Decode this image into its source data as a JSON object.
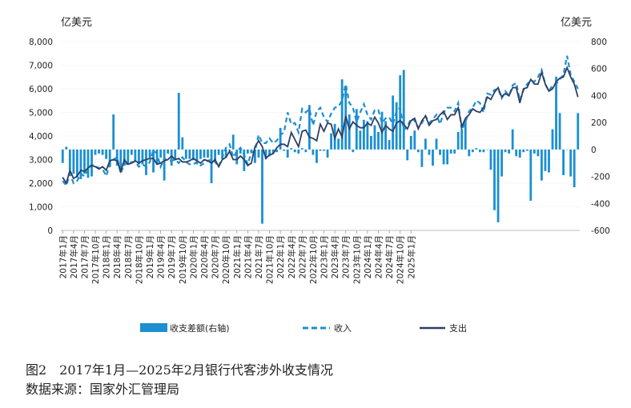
{
  "chart_data": {
    "type": "bar+line",
    "left_axis_unit": "亿美元",
    "right_axis_unit": "亿美元",
    "left_ylim": [
      0,
      8000
    ],
    "right_ylim": [
      -600,
      800
    ],
    "left_ticks": [
      "8,000",
      "7,000",
      "6,000",
      "5,000",
      "4,000",
      "3,000",
      "2,000",
      "1,000",
      "0"
    ],
    "right_ticks": [
      "800",
      "600",
      "400",
      "200",
      "0",
      "-200",
      "-400",
      "-600"
    ],
    "x_tick_labels": [
      "2017年1月",
      "2017年4月",
      "2017年7月",
      "2017年10月",
      "2018年1月",
      "2018年4月",
      "2018年7月",
      "2018年10月",
      "2019年1月",
      "2019年4月",
      "2019年7月",
      "2019年10月",
      "2020年1月",
      "2020年4月",
      "2020年7月",
      "2020年10月",
      "2021年1月",
      "2021年4月",
      "2021年7月",
      "2021年10月",
      "2022年1月",
      "2022年4月",
      "2022年7月",
      "2022年10月",
      "2023年1月",
      "2023年4月",
      "2023年7月",
      "2023年10月",
      "2024年1月",
      "2024年4月",
      "2024年7月",
      "2024年10月",
      "2025年1月"
    ],
    "legend": [
      "收支差额(右轴)",
      "收入",
      "支出"
    ],
    "colors": {
      "bars": "#1b8fd2",
      "income": "#1b8fd2",
      "expense": "#2f3f63"
    },
    "series": [
      {
        "name": "收支差额(右轴)",
        "axis": "right",
        "type": "bar",
        "values": [
          -100,
          20,
          -150,
          -180,
          -210,
          -220,
          -180,
          -210,
          -200,
          -40,
          -30,
          -40,
          -70,
          -130,
          260,
          -120,
          -150,
          -120,
          -110,
          -40,
          -90,
          -110,
          -110,
          -190,
          -60,
          -170,
          -110,
          -60,
          -230,
          -30,
          -120,
          -80,
          420,
          90,
          -70,
          -70,
          -80,
          -110,
          -70,
          -60,
          -60,
          -250,
          -90,
          -40,
          -70,
          -60,
          -10,
          110,
          -110,
          -30,
          -160,
          -30,
          -20,
          -100,
          -60,
          -550,
          -70,
          -50,
          -30,
          -20,
          160,
          -10,
          -60,
          10,
          -20,
          -30,
          10,
          -20,
          330,
          -40,
          -100,
          -10,
          -10,
          -60,
          120,
          190,
          80,
          520,
          470,
          260,
          -20,
          300,
          140,
          220,
          210,
          100,
          180,
          130,
          280,
          210,
          70,
          400,
          350,
          550,
          590,
          -80,
          100,
          140,
          -20,
          -130,
          80,
          -40,
          -120,
          80,
          -40,
          -110,
          -110,
          -30,
          -30,
          130,
          150,
          220,
          -50,
          -20,
          10,
          -20,
          -20,
          0,
          -150,
          -450,
          -540,
          -200,
          -20,
          -30,
          150,
          -50,
          -60,
          -20,
          -10,
          -380,
          -30,
          -50,
          -230,
          -160,
          -170,
          150,
          540,
          270,
          -190,
          0,
          -200,
          -280,
          270
        ]
      },
      {
        "name": "收入",
        "axis": "left",
        "type": "line",
        "dashed": true,
        "values": [
          2100,
          1900,
          2400,
          2000,
          2100,
          2400,
          2300,
          2600,
          2800,
          2700,
          2650,
          2600,
          2300,
          2800,
          3000,
          3100,
          2400,
          2850,
          2800,
          2900,
          2900,
          2700,
          2800,
          2700,
          2900,
          3400,
          3250,
          2700,
          3050,
          2950,
          2950,
          3000,
          2850,
          3100,
          2900,
          2800,
          2800,
          2900,
          2750,
          2850,
          2950,
          3000,
          2900,
          2700,
          3100,
          3500,
          3650,
          3100,
          3350,
          3500,
          3200,
          2800,
          3300,
          3350,
          4050,
          3700,
          3700,
          3900,
          3700,
          3800,
          4050,
          4150,
          5000,
          4500,
          4550,
          4150,
          5150,
          5000,
          5150,
          4450,
          5050,
          5200,
          4800,
          4600,
          4950,
          5200,
          5250,
          5500,
          6200,
          5400,
          5200,
          4600,
          5000,
          5350,
          4900,
          4700,
          5100,
          5100,
          4550,
          4750,
          4800,
          4500,
          5050,
          5200,
          4250,
          4400,
          4750,
          4650,
          4350,
          4550,
          4850,
          4550,
          4700,
          4900,
          4500,
          5000,
          5200,
          5200,
          5050,
          5400,
          4250,
          4600,
          5050,
          5200,
          5500,
          5400,
          5000,
          5800,
          5750,
          5950,
          6000,
          5600,
          5900,
          5700,
          6150,
          6250,
          5500,
          5950,
          6200,
          6350,
          6300,
          6500,
          6800,
          6200,
          5900,
          6150,
          6200,
          6400,
          6600,
          7400,
          6600,
          6300,
          6000
        ]
      },
      {
        "name": "支出",
        "axis": "left",
        "type": "line",
        "dashed": false,
        "values": [
          2250,
          2000,
          2550,
          2200,
          2300,
          2550,
          2500,
          2650,
          2750,
          2700,
          2600,
          2700,
          2550,
          2950,
          3000,
          2950,
          2500,
          3000,
          2800,
          2850,
          2950,
          2850,
          2950,
          3000,
          3050,
          3050,
          2800,
          2850,
          2950,
          3000,
          3150,
          3000,
          3050,
          2900,
          2900,
          2950,
          3050,
          2950,
          2850,
          3000,
          2950,
          2850,
          3000,
          2700,
          3000,
          3100,
          3350,
          3000,
          3000,
          3150,
          3000,
          2750,
          2850,
          3550,
          3800,
          3550,
          3050,
          3200,
          3250,
          3500,
          3650,
          3650,
          3550,
          4150,
          3850,
          3550,
          4200,
          4250,
          3950,
          3900,
          3800,
          4500,
          4200,
          4550,
          4500,
          3900,
          4300,
          3950,
          4850,
          4300,
          4600,
          4450,
          4350,
          4350,
          4550,
          4450,
          4800,
          4550,
          4150,
          4450,
          4300,
          4200,
          4550,
          4650,
          4500,
          4300,
          4650,
          4750,
          4300,
          4650,
          4850,
          4450,
          4650,
          4700,
          4900,
          5050,
          4700,
          4900,
          4900,
          5200,
          4400,
          4750,
          4900,
          5150,
          5050,
          5000,
          5200,
          5650,
          5550,
          5850,
          6050,
          5650,
          5800,
          5700,
          6050,
          6050,
          5400,
          6000,
          6050,
          6400,
          6200,
          6200,
          6700,
          6200,
          5900,
          6000,
          6300,
          6450,
          6500,
          6900,
          6500,
          6200,
          5650
        ]
      }
    ]
  },
  "caption": {
    "title": "图2　2017年1月—2025年2月银行代客涉外收支情况",
    "source": "数据来源：国家外汇管理局"
  }
}
